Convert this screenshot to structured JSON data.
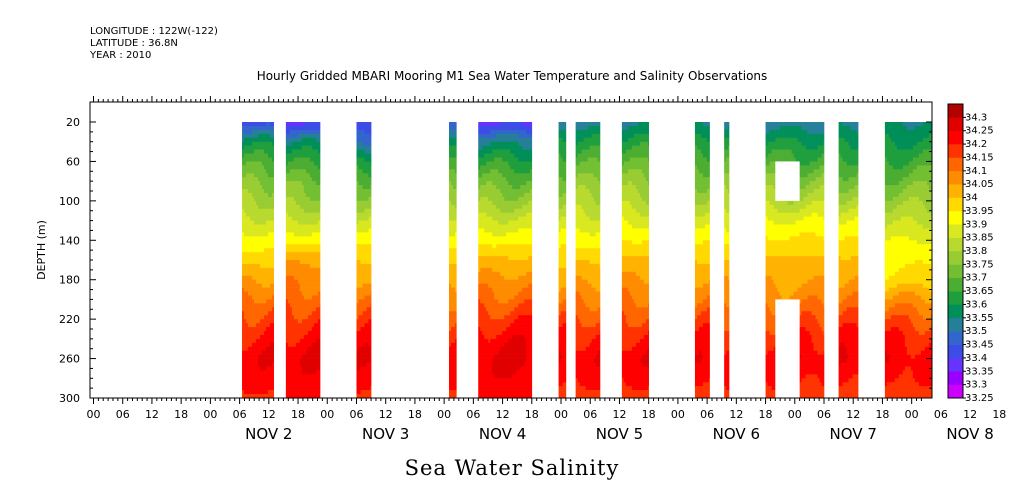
{
  "header": {
    "longitude": "LONGITUDE : 122W(-122)",
    "latitude": "LATITUDE : 36.8N",
    "year": "YEAR : 2010",
    "title": "Hourly Gridded MBARI Mooring M1 Sea Water Temperature and Salinity Observations"
  },
  "caption": "Sea Water Salinity",
  "chart_data": {
    "type": "heatmap",
    "title": "Hourly Gridded MBARI Mooring M1 Sea Water Temperature and Salinity Observations",
    "xlabel": "",
    "ylabel": "DEPTH (m)",
    "x_unit": "hours since NOV 1 00:00 (2010)",
    "xlim": [
      0,
      170
    ],
    "ylim": [
      300,
      0
    ],
    "y_ticks": [
      20,
      60,
      100,
      140,
      180,
      220,
      260,
      300
    ],
    "x_tick_hour_labels": [
      "00",
      "06",
      "12",
      "18",
      "00",
      "06",
      "12",
      "18",
      "00",
      "06",
      "12",
      "18",
      "00",
      "06",
      "12",
      "18",
      "00",
      "06",
      "12",
      "18",
      "00",
      "06",
      "12",
      "18",
      "00",
      "06",
      "12",
      "18",
      "00",
      "06",
      "12",
      "18",
      "00",
      "06",
      "12",
      "18"
    ],
    "date_labels": [
      "NOV 2",
      "NOV 3",
      "NOV 4",
      "NOV 5",
      "NOV 6",
      "NOV 7",
      "NOV 8"
    ],
    "depths": [
      20,
      40,
      60,
      80,
      100,
      120,
      140,
      160,
      180,
      200,
      220,
      240,
      260,
      280,
      300
    ],
    "colorbar": {
      "levels": [
        33.25,
        33.3,
        33.35,
        33.4,
        33.45,
        33.5,
        33.55,
        33.6,
        33.65,
        33.7,
        33.75,
        33.8,
        33.85,
        33.9,
        33.95,
        34,
        34.05,
        34.1,
        34.15,
        34.2,
        34.25,
        34.3
      ],
      "colors": [
        "#cc00ff",
        "#9900ff",
        "#6633ff",
        "#3d4ce6",
        "#3366cc",
        "#267f99",
        "#008f59",
        "#1f9e3d",
        "#4cad33",
        "#73bf33",
        "#99cc33",
        "#b8d92e",
        "#d9e81f",
        "#ffff00",
        "#ffd900",
        "#ffb300",
        "#ff8c00",
        "#ff6600",
        "#ff3300",
        "#ff0000",
        "#e00000",
        "#b30000"
      ]
    },
    "segments": [
      {
        "start": 30.5,
        "end": 37,
        "profile": [
          33.42,
          33.58,
          33.67,
          33.74,
          33.8,
          33.86,
          33.92,
          33.98,
          34.05,
          34.12,
          34.17,
          34.21,
          34.24,
          34.22,
          34.19
        ]
      },
      {
        "start": 39.5,
        "end": 46.5,
        "profile": [
          33.38,
          33.55,
          33.64,
          33.72,
          33.78,
          33.85,
          33.93,
          34.04,
          34.09,
          34.13,
          34.18,
          34.22,
          34.25,
          34.23,
          34.2
        ]
      },
      {
        "start": 54,
        "end": 57,
        "profile": [
          33.4,
          33.47,
          33.62,
          33.71,
          33.78,
          33.86,
          33.93,
          34.0,
          34.05,
          34.12,
          34.17,
          34.21,
          34.24,
          34.22,
          34.19
        ]
      },
      {
        "start": 73,
        "end": 74.5,
        "profile": [
          33.45,
          33.56,
          33.64,
          33.72,
          33.8,
          33.87,
          33.93,
          33.99,
          34.04,
          34.1,
          34.16,
          34.2,
          34.23,
          34.21,
          34.18
        ]
      },
      {
        "start": 79,
        "end": 90,
        "profile": [
          33.38,
          33.54,
          33.63,
          33.71,
          33.78,
          33.86,
          33.93,
          34.01,
          34.07,
          34.12,
          34.18,
          34.23,
          34.26,
          34.24,
          34.2
        ]
      },
      {
        "start": 95.5,
        "end": 97,
        "profile": [
          33.5,
          33.6,
          33.67,
          33.74,
          33.8,
          33.87,
          33.93,
          33.99,
          34.04,
          34.1,
          34.16,
          34.2,
          34.23,
          34.21,
          34.18
        ]
      },
      {
        "start": 99,
        "end": 104,
        "profile": [
          33.53,
          33.61,
          33.68,
          33.75,
          33.81,
          33.87,
          33.93,
          33.99,
          34.04,
          34.1,
          34.16,
          34.21,
          34.24,
          34.21,
          34.18
        ]
      },
      {
        "start": 108.5,
        "end": 114,
        "profile": [
          33.54,
          33.62,
          33.69,
          33.76,
          33.82,
          33.89,
          33.95,
          34.01,
          34.06,
          34.11,
          34.16,
          34.21,
          34.24,
          34.21,
          34.18
        ]
      },
      {
        "start": 123.5,
        "end": 126.5,
        "profile": [
          33.53,
          33.61,
          33.68,
          33.75,
          33.81,
          33.88,
          33.94,
          34.0,
          34.05,
          34.1,
          34.16,
          34.2,
          34.23,
          34.21,
          34.18
        ]
      },
      {
        "start": 129.5,
        "end": 130.5,
        "profile": [
          33.53,
          33.61,
          33.68,
          33.75,
          33.81,
          33.88,
          33.94,
          34.0,
          34.05,
          34.1,
          34.16,
          34.2,
          34.23,
          34.21,
          34.18
        ]
      },
      {
        "start": 138,
        "end": 150,
        "profile": [
          33.52,
          33.6,
          33.67,
          33.75,
          33.82,
          33.9,
          33.96,
          34.01,
          34.04,
          34.08,
          34.14,
          34.2,
          34.24,
          34.21,
          34.18
        ]
      },
      {
        "start": 153,
        "end": 157,
        "profile": [
          33.53,
          33.6,
          33.67,
          33.74,
          33.81,
          33.89,
          33.95,
          34.01,
          34.05,
          34.1,
          34.16,
          34.21,
          34.24,
          34.21,
          34.18
        ]
      },
      {
        "start": 162.5,
        "end": 173,
        "profile": [
          33.55,
          33.6,
          33.66,
          33.72,
          33.78,
          33.84,
          33.9,
          33.94,
          33.97,
          34.06,
          34.14,
          34.2,
          34.23,
          34.21,
          34.17
        ]
      }
    ],
    "gaps": [
      {
        "start": 140,
        "end": 145,
        "depth_from": 60,
        "depth_to": 100
      },
      {
        "start": 140,
        "end": 145,
        "depth_from": 200,
        "depth_to": 300
      }
    ]
  }
}
